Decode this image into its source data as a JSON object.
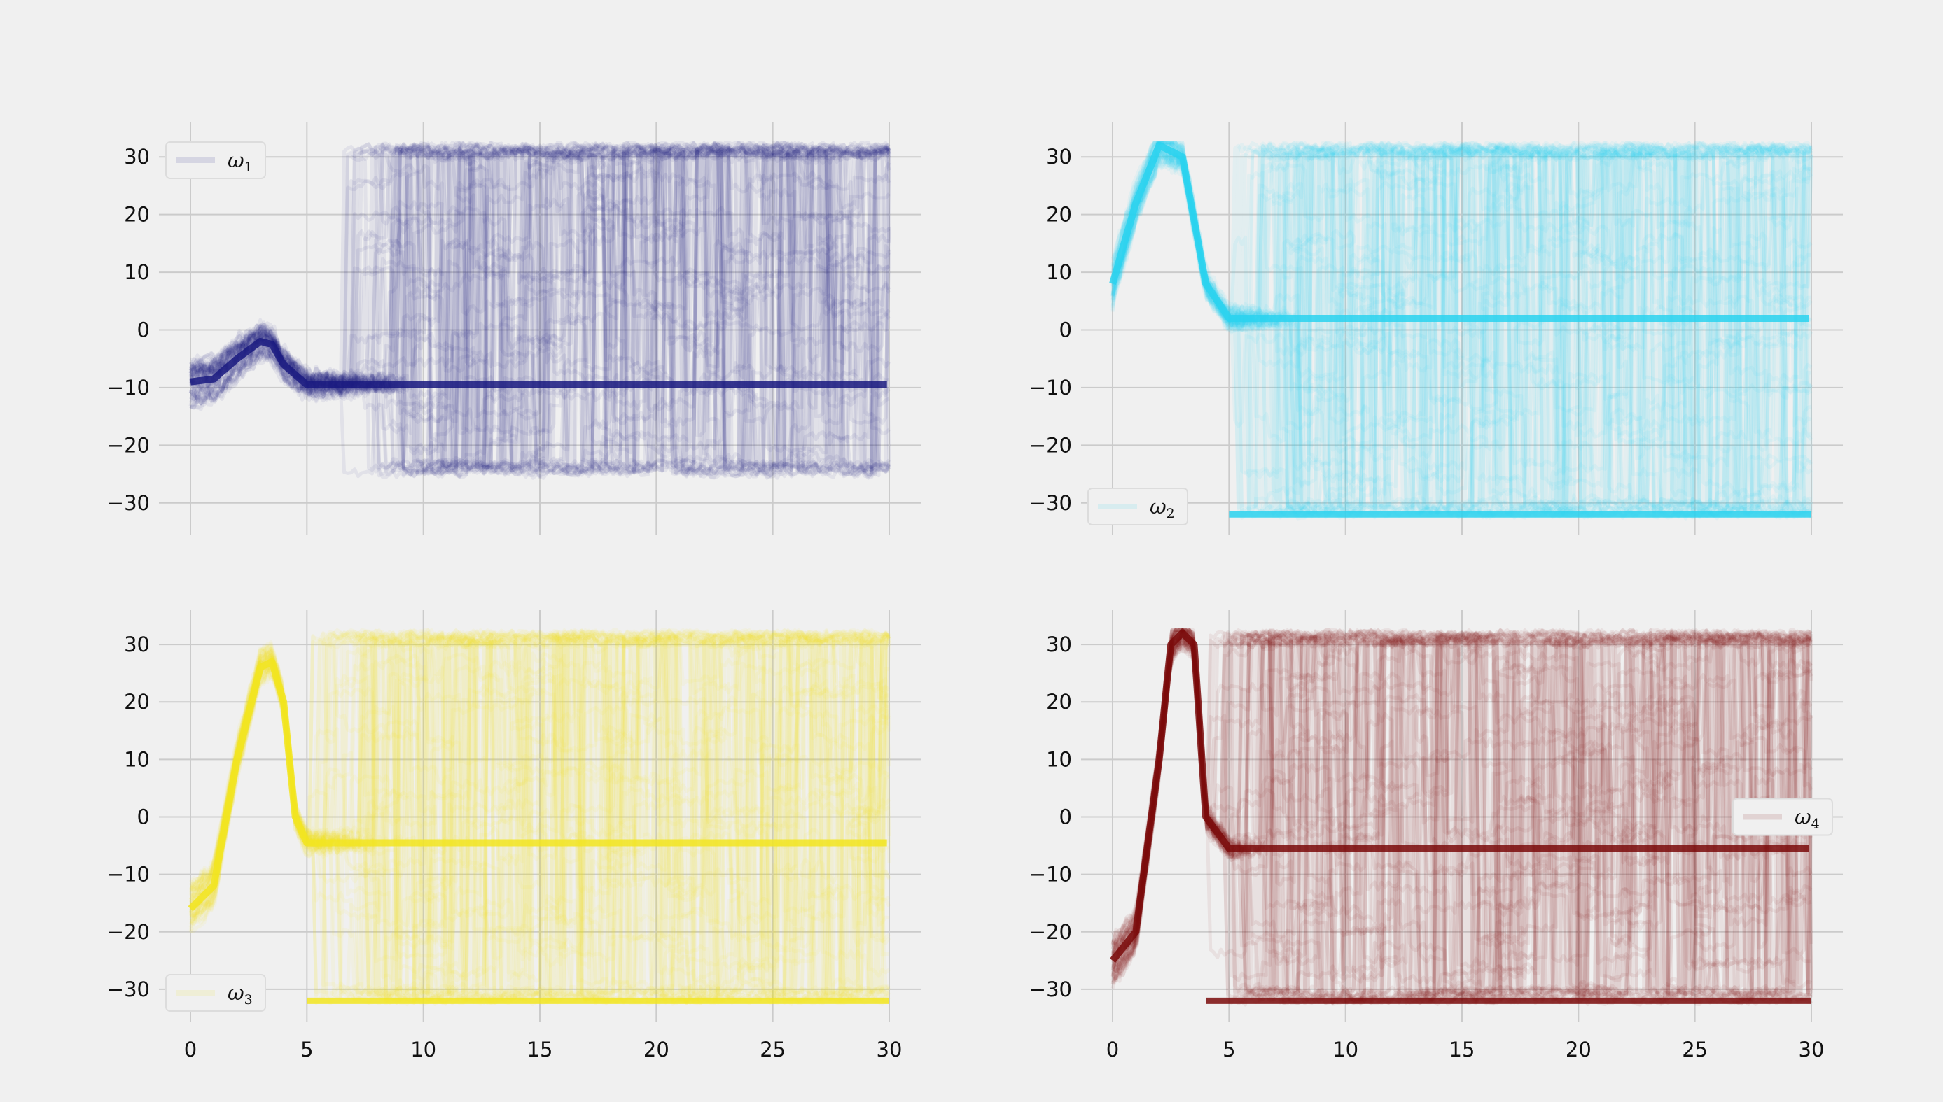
{
  "figure": {
    "background": "#f0f0f0",
    "grid_color": "#cbcbcb"
  },
  "chart_data": [
    {
      "type": "line",
      "legend": "ω₁",
      "legend_symbol": "ω",
      "legend_subscript": "1",
      "legend_position": "top-left",
      "color": "#1a1a80",
      "xlim": [
        0,
        30
      ],
      "ylim": [
        -35,
        35
      ],
      "xticks": [
        0,
        5,
        10,
        15,
        20,
        25,
        30
      ],
      "x_tick_labels_shown": false,
      "yticks": [
        -30,
        -20,
        -10,
        0,
        10,
        20,
        30
      ],
      "ytick_labels": [
        "−30",
        "−20",
        "−10",
        "0",
        "10",
        "20",
        "30"
      ],
      "grid": true,
      "dominant_trajectory": {
        "x": [
          0,
          1,
          2,
          3,
          3.5,
          4,
          5,
          10,
          15,
          20,
          25,
          30
        ],
        "y": [
          -9,
          -8.5,
          -5,
          -2,
          -2.5,
          -6,
          -9.5,
          -9.5,
          -9.5,
          -9.5,
          -9.5,
          -9.5
        ]
      },
      "envelope": {
        "y_range_after_t6": [
          -25,
          32
        ],
        "switch_time": 6.5
      }
    },
    {
      "type": "line",
      "legend": "ω₂",
      "legend_symbol": "ω",
      "legend_subscript": "2",
      "legend_position": "bottom-left",
      "color": "#2ad2ee",
      "xlim": [
        0,
        30
      ],
      "ylim": [
        -35,
        35
      ],
      "xticks": [
        0,
        5,
        10,
        15,
        20,
        25,
        30
      ],
      "x_tick_labels_shown": false,
      "yticks": [
        -30,
        -20,
        -10,
        0,
        10,
        20,
        30
      ],
      "ytick_labels": [
        "−30",
        "−20",
        "−10",
        "0",
        "10",
        "20",
        "30"
      ],
      "grid": true,
      "dominant_trajectory": {
        "x": [
          0,
          1,
          2,
          3,
          4,
          5,
          10,
          15,
          20,
          25,
          30
        ],
        "y": [
          8,
          22,
          32,
          30,
          8,
          2,
          2,
          2,
          2,
          2,
          2
        ]
      },
      "secondary_level": -32,
      "envelope": {
        "y_range_after_t6": [
          -32,
          32
        ],
        "switch_time": 5
      }
    },
    {
      "type": "line",
      "legend": "ω₃",
      "legend_symbol": "ω",
      "legend_subscript": "3",
      "legend_position": "bottom-left",
      "color": "#f2e520",
      "xlim": [
        0,
        30
      ],
      "ylim": [
        -35,
        35
      ],
      "xticks": [
        0,
        5,
        10,
        15,
        20,
        25,
        30
      ],
      "xtick_labels": [
        "0",
        "5",
        "10",
        "15",
        "20",
        "25",
        "30"
      ],
      "yticks": [
        -30,
        -20,
        -10,
        0,
        10,
        20,
        30
      ],
      "ytick_labels": [
        "−30",
        "−20",
        "−10",
        "0",
        "10",
        "20",
        "30"
      ],
      "grid": true,
      "dominant_trajectory": {
        "x": [
          0,
          1,
          2,
          3,
          3.5,
          4,
          4.5,
          5,
          10,
          15,
          20,
          25,
          30
        ],
        "y": [
          -16,
          -12,
          10,
          26,
          27,
          20,
          0,
          -4.5,
          -4.5,
          -4.5,
          -4.5,
          -4.5,
          -4.5
        ]
      },
      "secondary_level": -32,
      "envelope": {
        "y_range_after_t6": [
          -32,
          32
        ],
        "switch_time": 5
      }
    },
    {
      "type": "line",
      "legend": "ω₄",
      "legend_symbol": "ω",
      "legend_subscript": "4",
      "legend_position": "center-right",
      "color": "#7a0b0b",
      "xlim": [
        0,
        30
      ],
      "ylim": [
        -35,
        35
      ],
      "xticks": [
        0,
        5,
        10,
        15,
        20,
        25,
        30
      ],
      "xtick_labels": [
        "0",
        "5",
        "10",
        "15",
        "20",
        "25",
        "30"
      ],
      "yticks": [
        -30,
        -20,
        -10,
        0,
        10,
        20,
        30
      ],
      "ytick_labels": [
        "−30",
        "−20",
        "−10",
        "0",
        "10",
        "20",
        "30"
      ],
      "grid": true,
      "dominant_trajectory": {
        "x": [
          0,
          1,
          2,
          2.5,
          3,
          3.5,
          4,
          5,
          10,
          15,
          20,
          25,
          30
        ],
        "y": [
          -25,
          -20,
          10,
          30,
          32,
          30,
          0,
          -5.5,
          -5.5,
          -5.5,
          -5.5,
          -5.5,
          -5.5
        ]
      },
      "secondary_level": -32,
      "envelope": {
        "y_range_after_t6": [
          -32,
          32
        ],
        "switch_time": 4
      }
    }
  ]
}
